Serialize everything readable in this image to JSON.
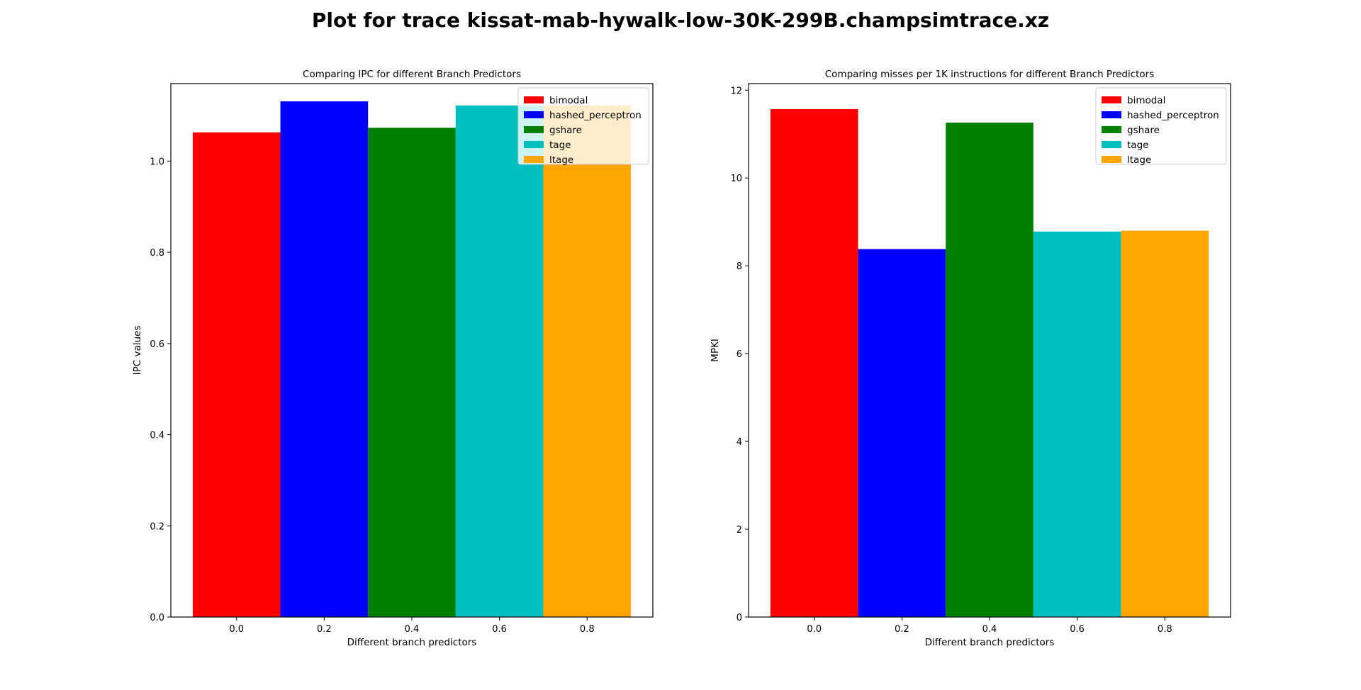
{
  "suptitle": "Plot for trace kissat-mab-hywalk-low-30K-299B.champsimtrace.xz",
  "chart_data": [
    {
      "type": "bar",
      "title": "Comparing IPC for different Branch Predictors",
      "xlabel": "Different branch predictors",
      "ylabel": "IPC values",
      "xlim": [
        -0.15,
        0.95
      ],
      "ylim": [
        0,
        1.17
      ],
      "xticks": [
        "0.0",
        "0.2",
        "0.4",
        "0.6",
        "0.8"
      ],
      "yticks": [
        "0.0",
        "0.2",
        "0.4",
        "0.6",
        "0.8",
        "1.0"
      ],
      "bar_width": 0.2,
      "series": [
        {
          "name": "bimodal",
          "x": 0.0,
          "value": 1.063,
          "color": "#ff0000"
        },
        {
          "name": "hashed_perceptron",
          "x": 0.2,
          "value": 1.131,
          "color": "#0000ff"
        },
        {
          "name": "gshare",
          "x": 0.4,
          "value": 1.073,
          "color": "#008000"
        },
        {
          "name": "tage",
          "x": 0.6,
          "value": 1.122,
          "color": "#00bfbf"
        },
        {
          "name": "ltage",
          "x": 0.8,
          "value": 1.122,
          "color": "#ffa500"
        }
      ],
      "legend": "upper-right",
      "grid": false
    },
    {
      "type": "bar",
      "title": "Comparing misses per 1K instructions for different Branch Predictors",
      "xlabel": "Different branch predictors",
      "ylabel": "MPKI",
      "xlim": [
        -0.15,
        0.95
      ],
      "ylim": [
        0,
        12.15
      ],
      "xticks": [
        "0.0",
        "0.2",
        "0.4",
        "0.6",
        "0.8"
      ],
      "yticks": [
        "0",
        "2",
        "4",
        "6",
        "8",
        "10",
        "12"
      ],
      "bar_width": 0.2,
      "series": [
        {
          "name": "bimodal",
          "x": 0.0,
          "value": 11.57,
          "color": "#ff0000"
        },
        {
          "name": "hashed_perceptron",
          "x": 0.2,
          "value": 8.38,
          "color": "#0000ff"
        },
        {
          "name": "gshare",
          "x": 0.4,
          "value": 11.26,
          "color": "#008000"
        },
        {
          "name": "tage",
          "x": 0.6,
          "value": 8.78,
          "color": "#00bfbf"
        },
        {
          "name": "ltage",
          "x": 0.8,
          "value": 8.8,
          "color": "#ffa500"
        }
      ],
      "legend": "upper-right",
      "grid": false
    }
  ]
}
